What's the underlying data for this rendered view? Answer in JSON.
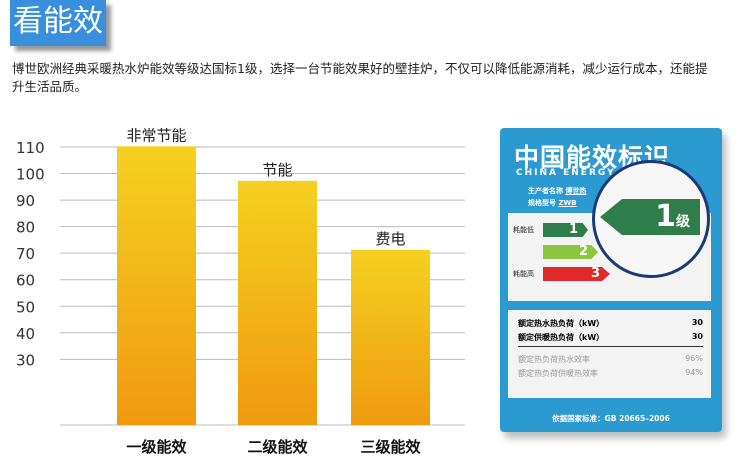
{
  "header": {
    "title": "看能效"
  },
  "description": "博世欧洲经典采暖热水炉能效等级达国标1级，选择一台节能效果好的壁挂炉，不仅可以降低能源消耗，减少运行成本，还能提升生活品质。",
  "chart_data": {
    "type": "bar",
    "categories": [
      "一级能效",
      "二级能效",
      "三级能效"
    ],
    "values": [
      108,
      95,
      69
    ],
    "bar_labels": [
      "非常节能",
      "节能",
      "费电"
    ],
    "yticks": [
      110,
      100,
      90,
      80,
      70,
      60,
      50,
      40,
      30
    ],
    "ylim": [
      3,
      113
    ],
    "grid": true,
    "bar_color_top": "#f5d020",
    "bar_color_bottom": "#f09a10"
  },
  "energy_label": {
    "title_cn": "中国能效标识",
    "title_en": "CHINA ENERGY",
    "maker_label": "生产者名称",
    "maker_value": "博世热",
    "model_label": "规格型号",
    "model_value": "ZWB",
    "low_label": "耗能低",
    "high_label": "耗能高",
    "grades": [
      "1",
      "2",
      "3"
    ],
    "grade_colors": [
      "#2e7d4a",
      "#8cc63f",
      "#e02a2a"
    ],
    "zoom_grade": "1",
    "zoom_unit": "级",
    "rows": [
      {
        "label": "额定热水热负荷（kW）",
        "value": "30"
      },
      {
        "label": "额定供暖热负荷（kW）",
        "value": "30"
      },
      {
        "label": "额定热负荷热水效率",
        "value": "96%"
      },
      {
        "label": "额定热负荷供暖热效率",
        "value": "94%"
      }
    ],
    "standard": "依据国家标准：GB 20665–2006"
  }
}
